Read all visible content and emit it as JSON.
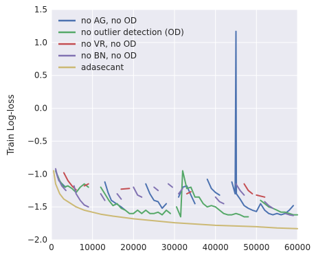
{
  "chart_data": {
    "type": "line",
    "title": "",
    "xlabel": "",
    "ylabel": "Train Log-loss",
    "xlim": [
      0,
      60000
    ],
    "ylim": [
      -2.0,
      1.5
    ],
    "xticks": [
      0,
      10000,
      20000,
      30000,
      40000,
      50000,
      60000
    ],
    "xtick_labels": [
      "0",
      "10000",
      "20000",
      "30000",
      "40000",
      "50000",
      "60000"
    ],
    "yticks": [
      1.5,
      1.0,
      0.5,
      0.0,
      -0.5,
      -1.0,
      -1.5,
      -2.0
    ],
    "ytick_labels": [
      "1.5",
      "1.0",
      "0.5",
      "0.0",
      "−0.5",
      "−1.0",
      "−1.5",
      "−2.0"
    ],
    "grid": true,
    "legend_position": "top-left",
    "background": "#eaeaf2",
    "series": [
      {
        "name": "no AG, no OD",
        "color": "#4c72b0",
        "segments": [
          [
            [
              1000,
              -0.95
            ],
            [
              1800,
              -1.1
            ],
            [
              2600,
              -1.15
            ],
            [
              3400,
              -1.2
            ]
          ],
          [
            [
              13000,
              -1.12
            ],
            [
              13800,
              -1.28
            ],
            [
              14600,
              -1.4
            ],
            [
              15800,
              -1.45
            ],
            [
              17000,
              -1.5
            ],
            [
              18000,
              -1.55
            ]
          ],
          [
            [
              23000,
              -1.15
            ],
            [
              24000,
              -1.3
            ],
            [
              25000,
              -1.4
            ],
            [
              26000,
              -1.42
            ],
            [
              27000,
              -1.52
            ],
            [
              28000,
              -1.45
            ]
          ],
          [
            [
              31000,
              -1.35
            ],
            [
              32000,
              -1.2
            ],
            [
              33000,
              -1.18
            ],
            [
              34000,
              -1.32
            ],
            [
              35000,
              -1.45
            ]
          ],
          [
            [
              38000,
              -1.08
            ],
            [
              39000,
              -1.22
            ],
            [
              40000,
              -1.28
            ],
            [
              41000,
              -1.32
            ]
          ],
          [
            [
              44000,
              -1.12
            ],
            [
              44800,
              -1.3
            ],
            [
              45000,
              1.17
            ],
            [
              45100,
              -1.3
            ],
            [
              46000,
              -1.38
            ],
            [
              47000,
              -1.48
            ],
            [
              48000,
              -1.52
            ],
            [
              49000,
              -1.55
            ],
            [
              50000,
              -1.57
            ],
            [
              51000,
              -1.45
            ],
            [
              52000,
              -1.55
            ],
            [
              53000,
              -1.6
            ],
            [
              54000,
              -1.62
            ],
            [
              55000,
              -1.6
            ],
            [
              56000,
              -1.62
            ],
            [
              57000,
              -1.6
            ],
            [
              58000,
              -1.55
            ],
            [
              59000,
              -1.48
            ]
          ]
        ]
      },
      {
        "name": "no outlier detection (OD)",
        "color": "#55a868",
        "segments": [
          [
            [
              1000,
              -0.95
            ],
            [
              2000,
              -1.1
            ],
            [
              3000,
              -1.2
            ],
            [
              4000,
              -1.18
            ],
            [
              5000,
              -1.22
            ],
            [
              6000,
              -1.28
            ],
            [
              7000,
              -1.2
            ],
            [
              8000,
              -1.15
            ],
            [
              9000,
              -1.2
            ]
          ],
          [
            [
              12000,
              -1.2
            ],
            [
              13000,
              -1.3
            ],
            [
              14000,
              -1.4
            ],
            [
              15000,
              -1.48
            ],
            [
              16000,
              -1.45
            ],
            [
              17000,
              -1.52
            ],
            [
              18000,
              -1.55
            ],
            [
              19000,
              -1.6
            ],
            [
              20000,
              -1.6
            ],
            [
              21000,
              -1.55
            ],
            [
              22000,
              -1.6
            ],
            [
              23000,
              -1.55
            ],
            [
              24000,
              -1.6
            ],
            [
              25000,
              -1.6
            ],
            [
              26000,
              -1.58
            ],
            [
              27000,
              -1.62
            ],
            [
              28000,
              -1.55
            ],
            [
              29000,
              -1.6
            ]
          ],
          [
            [
              30500,
              -1.5
            ],
            [
              31500,
              -1.65
            ],
            [
              32000,
              -0.95
            ],
            [
              33000,
              -1.22
            ],
            [
              34000,
              -1.2
            ],
            [
              35000,
              -1.35
            ],
            [
              36000,
              -1.35
            ],
            [
              37000,
              -1.45
            ],
            [
              38000,
              -1.5
            ],
            [
              39000,
              -1.48
            ],
            [
              40000,
              -1.5
            ],
            [
              41000,
              -1.55
            ],
            [
              42000,
              -1.6
            ],
            [
              43000,
              -1.62
            ],
            [
              44000,
              -1.62
            ],
            [
              45000,
              -1.6
            ],
            [
              46000,
              -1.62
            ],
            [
              47000,
              -1.65
            ],
            [
              48000,
              -1.65
            ]
          ],
          [
            [
              51000,
              -1.4
            ],
            [
              52000,
              -1.45
            ],
            [
              53000,
              -1.5
            ],
            [
              54000,
              -1.52
            ],
            [
              55000,
              -1.55
            ],
            [
              56000,
              -1.58
            ],
            [
              57000,
              -1.58
            ],
            [
              58000,
              -1.6
            ],
            [
              59000,
              -1.62
            ],
            [
              60000,
              -1.62
            ]
          ]
        ]
      },
      {
        "name": "no VR, no OD",
        "color": "#c44e52",
        "segments": [
          [
            [
              3000,
              -0.98
            ],
            [
              4000,
              -1.1
            ],
            [
              5000,
              -1.18
            ],
            [
              6000,
              -1.24
            ]
          ],
          [
            [
              8000,
              -1.18
            ],
            [
              9000,
              -1.15
            ]
          ],
          [
            [
              17000,
              -1.23
            ],
            [
              19000,
              -1.22
            ]
          ],
          [
            [
              33000,
              -1.3
            ],
            [
              34000,
              -1.27
            ]
          ],
          [
            [
              47000,
              -1.15
            ],
            [
              48000,
              -1.25
            ],
            [
              49000,
              -1.3
            ]
          ],
          [
            [
              50000,
              -1.32
            ],
            [
              52000,
              -1.35
            ]
          ]
        ]
      },
      {
        "name": "no BN, no OD",
        "color": "#8172b2",
        "segments": [
          [
            [
              1000,
              -0.92
            ],
            [
              1500,
              -1.05
            ],
            [
              2500,
              -1.18
            ],
            [
              3500,
              -1.25
            ]
          ],
          [
            [
              5500,
              -1.18
            ],
            [
              6000,
              -1.3
            ],
            [
              7000,
              -1.4
            ],
            [
              8000,
              -1.47
            ],
            [
              9000,
              -1.5
            ]
          ],
          [
            [
              12000,
              -1.3
            ],
            [
              13000,
              -1.4
            ]
          ],
          [
            [
              16000,
              -1.3
            ],
            [
              17000,
              -1.38
            ]
          ],
          [
            [
              20000,
              -1.2
            ],
            [
              21000,
              -1.32
            ],
            [
              22000,
              -1.35
            ]
          ],
          [
            [
              25000,
              -1.2
            ],
            [
              26000,
              -1.25
            ]
          ],
          [
            [
              28500,
              -1.15
            ],
            [
              29500,
              -1.2
            ]
          ],
          [
            [
              31000,
              -1.3
            ],
            [
              32000,
              -1.22
            ]
          ],
          [
            [
              40000,
              -1.35
            ],
            [
              41000,
              -1.42
            ],
            [
              42000,
              -1.45
            ]
          ],
          [
            [
              45000,
              -1.15
            ],
            [
              46000,
              -1.25
            ],
            [
              47000,
              -1.32
            ]
          ],
          [
            [
              52000,
              -1.42
            ],
            [
              53000,
              -1.48
            ],
            [
              54000,
              -1.52
            ]
          ],
          [
            [
              57000,
              -1.6
            ],
            [
              58000,
              -1.62
            ],
            [
              59000,
              -1.63
            ]
          ]
        ]
      },
      {
        "name": "adasecant",
        "color": "#ccb974",
        "segments": [
          [
            [
              500,
              -0.95
            ],
            [
              1000,
              -1.15
            ],
            [
              2000,
              -1.3
            ],
            [
              3000,
              -1.38
            ],
            [
              4000,
              -1.42
            ],
            [
              6000,
              -1.5
            ],
            [
              8000,
              -1.55
            ],
            [
              10000,
              -1.58
            ],
            [
              12000,
              -1.61
            ],
            [
              15000,
              -1.64
            ],
            [
              20000,
              -1.68
            ],
            [
              25000,
              -1.71
            ],
            [
              30000,
              -1.74
            ],
            [
              35000,
              -1.76
            ],
            [
              40000,
              -1.78
            ],
            [
              45000,
              -1.79
            ],
            [
              50000,
              -1.8
            ],
            [
              55000,
              -1.82
            ],
            [
              60000,
              -1.83
            ]
          ]
        ]
      }
    ]
  }
}
